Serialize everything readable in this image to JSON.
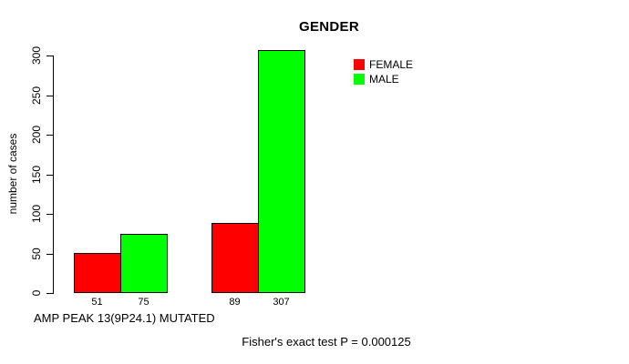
{
  "chart_data": {
    "type": "bar",
    "title": "GENDER",
    "ylabel": "number of cases",
    "xlabel": "AMP PEAK 13(9P24.1) MUTATED",
    "annotation": "Fisher's exact test P = 0.000125",
    "ylim": [
      0,
      300
    ],
    "yticks": [
      0,
      50,
      100,
      150,
      200,
      250,
      300
    ],
    "grid": false,
    "legend_position": "top-right",
    "categories": [
      "",
      ""
    ],
    "series": [
      {
        "name": "FEMALE",
        "color": "#ff0000",
        "values": [
          51,
          89
        ]
      },
      {
        "name": "MALE",
        "color": "#00ff00",
        "values": [
          75,
          307
        ]
      }
    ],
    "bar_value_labels": [
      "51",
      "75",
      "89",
      "307"
    ]
  },
  "colors": {
    "female": "#ff0000",
    "male": "#00ff00",
    "axis": "#000000",
    "background": "#ffffff"
  }
}
